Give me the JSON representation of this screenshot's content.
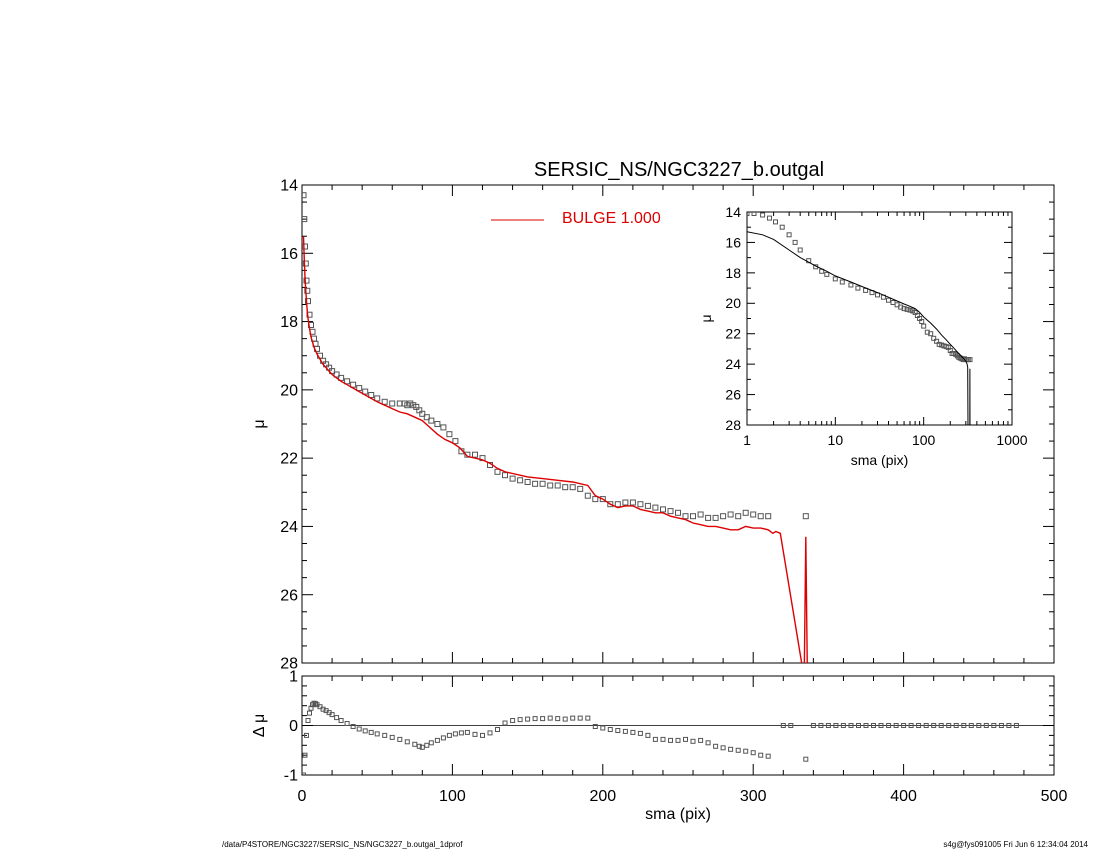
{
  "chart_data": [
    {
      "panel": "main",
      "type": "scatter",
      "title": "SERSIC_NS/NGC3227_b.outgal",
      "xlabel": "",
      "ylabel": "μ",
      "xlim": [
        0,
        500
      ],
      "ylim": [
        28,
        14
      ],
      "y_inverted": true,
      "xticks": [
        0,
        100,
        200,
        300,
        400,
        500
      ],
      "yticks": [
        14,
        16,
        18,
        20,
        22,
        24,
        26,
        28
      ],
      "legend": {
        "label": "BULGE  1.000",
        "placement": "top-center",
        "color": "#dd0000"
      },
      "series": [
        {
          "role": "observed",
          "marker": "square",
          "color": "#555555",
          "x": [
            1,
            1.5,
            2,
            2.5,
            3,
            3.5,
            4,
            5,
            6,
            7,
            8,
            9,
            10,
            12,
            14,
            16,
            18,
            20,
            23,
            26,
            30,
            34,
            38,
            42,
            46,
            50,
            55,
            60,
            65,
            68,
            70,
            72,
            74,
            76,
            78,
            80,
            83,
            86,
            90,
            94,
            98,
            102,
            106,
            110,
            115,
            120,
            125,
            130,
            135,
            140,
            145,
            150,
            155,
            160,
            165,
            170,
            175,
            180,
            185,
            190,
            195,
            200,
            205,
            210,
            215,
            220,
            225,
            230,
            235,
            240,
            245,
            250,
            255,
            260,
            265,
            270,
            275,
            280,
            285,
            290,
            295,
            300,
            305,
            310,
            335
          ],
          "y": [
            14.3,
            15.0,
            15.8,
            16.3,
            16.8,
            17.1,
            17.4,
            17.8,
            18.1,
            18.3,
            18.5,
            18.65,
            18.8,
            19.0,
            19.15,
            19.25,
            19.35,
            19.45,
            19.55,
            19.65,
            19.75,
            19.85,
            19.95,
            20.05,
            20.15,
            20.25,
            20.35,
            20.4,
            20.4,
            20.4,
            20.45,
            20.4,
            20.45,
            20.5,
            20.6,
            20.7,
            20.8,
            20.9,
            21.0,
            21.1,
            21.3,
            21.5,
            21.8,
            21.9,
            21.9,
            22.0,
            22.2,
            22.4,
            22.5,
            22.6,
            22.65,
            22.7,
            22.75,
            22.75,
            22.8,
            22.8,
            22.85,
            22.85,
            22.9,
            23.1,
            23.2,
            23.2,
            23.35,
            23.35,
            23.3,
            23.3,
            23.35,
            23.4,
            23.45,
            23.5,
            23.55,
            23.6,
            23.7,
            23.7,
            23.65,
            23.75,
            23.75,
            23.7,
            23.65,
            23.7,
            23.6,
            23.65,
            23.7,
            23.7,
            23.7
          ]
        },
        {
          "role": "model",
          "name": "BULGE  1.000",
          "line": "solid",
          "color": "#dd0000",
          "x": [
            1,
            1.5,
            2,
            2.5,
            3,
            3.5,
            4,
            5,
            6,
            7,
            8,
            10,
            12,
            14,
            16,
            18,
            20,
            23,
            26,
            30,
            34,
            38,
            42,
            46,
            50,
            55,
            60,
            65,
            70,
            75,
            80,
            85,
            90,
            95,
            100,
            105,
            110,
            115,
            120,
            125,
            130,
            135,
            140,
            145,
            150,
            160,
            170,
            180,
            190,
            195,
            200,
            205,
            210,
            215,
            220,
            225,
            230,
            235,
            240,
            245,
            250,
            255,
            260,
            265,
            270,
            275,
            280,
            285,
            290,
            295,
            300,
            305,
            310,
            313,
            315,
            318,
            333,
            334,
            335,
            336,
            337
          ],
          "y": [
            15.5,
            16.2,
            16.7,
            17.1,
            17.4,
            17.7,
            17.9,
            18.2,
            18.45,
            18.6,
            18.75,
            18.95,
            19.1,
            19.25,
            19.35,
            19.45,
            19.55,
            19.65,
            19.75,
            19.85,
            19.95,
            20.05,
            20.15,
            20.25,
            20.35,
            20.45,
            20.55,
            20.65,
            20.7,
            20.8,
            20.9,
            21.1,
            21.3,
            21.45,
            21.55,
            21.7,
            21.95,
            22.0,
            22.05,
            22.15,
            22.3,
            22.4,
            22.45,
            22.5,
            22.55,
            22.6,
            22.65,
            22.7,
            22.8,
            23.1,
            23.2,
            23.35,
            23.45,
            23.4,
            23.4,
            23.5,
            23.55,
            23.6,
            23.6,
            23.7,
            23.75,
            23.8,
            23.9,
            23.95,
            24.0,
            24.0,
            24.05,
            24.1,
            24.1,
            24.0,
            24.05,
            24.05,
            24.1,
            24.2,
            24.15,
            24.2,
            28.2,
            28.2,
            24.3,
            28.2,
            28.2
          ]
        }
      ]
    },
    {
      "panel": "inset",
      "type": "scatter",
      "xscale": "log",
      "xlabel": "sma (pix)",
      "ylabel": "μ",
      "xlim": [
        1,
        1000
      ],
      "ylim": [
        28,
        14
      ],
      "y_inverted": true,
      "xticks": [
        1,
        10,
        100,
        1000
      ],
      "xtick_labels": [
        "1",
        "10",
        "100",
        "1000"
      ],
      "yticks": [
        14,
        16,
        18,
        20,
        22,
        24,
        26,
        28
      ],
      "series": [
        {
          "role": "observed",
          "marker": "square",
          "color": "#555555",
          "x": [
            1.0,
            1.2,
            1.5,
            1.8,
            2.1,
            2.5,
            3.0,
            3.5,
            4.0,
            5,
            6,
            7,
            8,
            10,
            12,
            15,
            18,
            22,
            26,
            30,
            35,
            40,
            45,
            50,
            55,
            60,
            65,
            70,
            75,
            80,
            85,
            90,
            95,
            100,
            110,
            120,
            130,
            140,
            150,
            160,
            170,
            180,
            190,
            200,
            210,
            220,
            230,
            240,
            250,
            260,
            270,
            280,
            290,
            300,
            310,
            320,
            335
          ],
          "y": [
            14.1,
            14.1,
            14.2,
            14.4,
            14.65,
            15.0,
            15.5,
            16.0,
            16.5,
            17.2,
            17.6,
            17.9,
            18.1,
            18.4,
            18.6,
            18.8,
            19.0,
            19.15,
            19.3,
            19.45,
            19.6,
            19.8,
            19.95,
            20.1,
            20.25,
            20.35,
            20.4,
            20.45,
            20.5,
            20.6,
            20.8,
            21.0,
            21.2,
            21.5,
            21.9,
            22.0,
            22.3,
            22.5,
            22.7,
            22.75,
            22.8,
            22.85,
            22.9,
            23.1,
            23.3,
            23.3,
            23.35,
            23.45,
            23.55,
            23.6,
            23.65,
            23.7,
            23.65,
            23.7,
            23.7,
            23.7,
            23.7
          ]
        },
        {
          "role": "model",
          "line": "solid",
          "color": "#000000",
          "x": [
            1,
            1.5,
            2,
            3,
            4,
            5,
            6,
            8,
            10,
            15,
            20,
            30,
            40,
            50,
            60,
            70,
            80,
            90,
            100,
            120,
            140,
            160,
            180,
            200,
            220,
            240,
            260,
            280,
            300,
            310,
            313,
            315,
            318,
            333,
            334,
            335,
            336
          ],
          "y": [
            15.3,
            15.5,
            15.8,
            16.5,
            17.0,
            17.3,
            17.55,
            17.9,
            18.2,
            18.6,
            18.9,
            19.3,
            19.6,
            19.85,
            20.05,
            20.2,
            20.35,
            20.6,
            20.9,
            21.3,
            21.7,
            22.1,
            22.4,
            22.7,
            22.95,
            23.2,
            23.4,
            23.6,
            23.8,
            24.0,
            24.1,
            24.2,
            28.2,
            28.2,
            24.3,
            28.2,
            28.2
          ]
        }
      ]
    },
    {
      "panel": "residual",
      "type": "scatter",
      "xlabel": "sma (pix)",
      "ylabel": "Δ μ",
      "xlim": [
        0,
        500
      ],
      "ylim": [
        -1,
        1
      ],
      "xticks": [
        0,
        100,
        200,
        300,
        400,
        500
      ],
      "yticks": [
        -1,
        0,
        1
      ],
      "reference_line": 0,
      "series": [
        {
          "role": "residual",
          "marker": "square",
          "color": "#555555",
          "x": [
            1,
            2,
            3,
            4,
            5,
            6,
            7,
            8,
            9,
            10,
            12,
            14,
            16,
            18,
            20,
            23,
            26,
            30,
            34,
            38,
            42,
            46,
            50,
            55,
            60,
            65,
            70,
            75,
            78,
            80,
            83,
            86,
            90,
            94,
            98,
            102,
            106,
            110,
            115,
            120,
            125,
            130,
            135,
            140,
            145,
            150,
            155,
            160,
            165,
            170,
            175,
            180,
            185,
            190,
            195,
            200,
            205,
            210,
            215,
            220,
            225,
            230,
            235,
            240,
            245,
            250,
            255,
            260,
            265,
            270,
            275,
            280,
            285,
            290,
            295,
            300,
            305,
            310,
            320,
            325,
            335,
            340,
            345,
            350,
            355,
            360,
            365,
            370,
            375,
            380,
            385,
            390,
            395,
            400,
            405,
            410,
            415,
            420,
            425,
            430,
            435,
            440,
            445,
            450,
            455,
            460,
            465,
            470,
            475
          ],
          "y": [
            -1.0,
            -0.6,
            -0.2,
            0.1,
            0.25,
            0.35,
            0.42,
            0.45,
            0.44,
            0.42,
            0.38,
            0.33,
            0.3,
            0.26,
            0.22,
            0.16,
            0.1,
            0.04,
            -0.02,
            -0.07,
            -0.11,
            -0.14,
            -0.17,
            -0.2,
            -0.24,
            -0.28,
            -0.33,
            -0.38,
            -0.42,
            -0.44,
            -0.4,
            -0.35,
            -0.3,
            -0.25,
            -0.2,
            -0.17,
            -0.15,
            -0.14,
            -0.18,
            -0.2,
            -0.15,
            -0.08,
            0.05,
            0.1,
            0.12,
            0.13,
            0.14,
            0.14,
            0.15,
            0.14,
            0.13,
            0.15,
            0.15,
            0.15,
            -0.02,
            -0.05,
            -0.08,
            -0.1,
            -0.12,
            -0.14,
            -0.16,
            -0.2,
            -0.28,
            -0.28,
            -0.3,
            -0.3,
            -0.28,
            -0.32,
            -0.3,
            -0.35,
            -0.42,
            -0.45,
            -0.48,
            -0.5,
            -0.52,
            -0.55,
            -0.6,
            -0.62,
            0.0,
            0.0,
            -0.68,
            0.0,
            0.0,
            0.0,
            0.0,
            0.0,
            0.0,
            0.0,
            0.0,
            0.0,
            0.0,
            0.0,
            0.0,
            0.0,
            0.0,
            0.0,
            0.0,
            0.0,
            0.0,
            0.0,
            0.0,
            0.0,
            0.0,
            0.0,
            0.0,
            0.0,
            0.0,
            0.0,
            0.0
          ]
        }
      ]
    }
  ],
  "footer": {
    "left": "/data/P4STORE/NGC3227/SERSIC_NS/NGC3227_b.outgal_1dprof",
    "right": "s4g@fys091005  Fri Jun  6 12:34:04 2014"
  }
}
